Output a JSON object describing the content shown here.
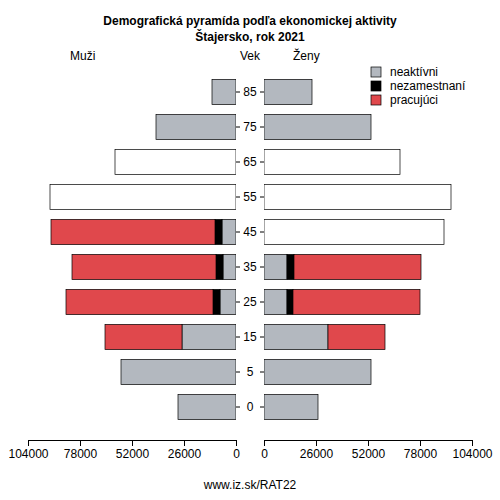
{
  "chart_data": {
    "type": "bar",
    "title": "Demografická pyramída podľa ekonomickej aktivity",
    "subtitle": "Štajersko, rok 2021",
    "ylabel": "Vek",
    "panel_labels": [
      "Muži",
      "Ženy"
    ],
    "source": "www.iz.sk/RAT22",
    "orientation": "horizontal",
    "stacked": true,
    "legend": "top-right",
    "categories": [
      0,
      5,
      15,
      25,
      35,
      45,
      55,
      65,
      75,
      85
    ],
    "xlim": [
      0,
      104000
    ],
    "xticks": [
      0,
      26000,
      52000,
      78000,
      104000
    ],
    "series": [
      {
        "name": "neaktívni",
        "color": "#b3b8bf",
        "men": [
          29000,
          57500,
          27000,
          8000,
          6500,
          7000,
          null,
          null,
          40000,
          12000
        ],
        "women": [
          27000,
          53500,
          32000,
          11500,
          11500,
          null,
          null,
          null,
          53500,
          24000
        ]
      },
      {
        "name": "nezamestnaní",
        "color": "#000000",
        "men": [
          null,
          null,
          0,
          3500,
          3500,
          3500,
          null,
          null,
          null,
          null
        ],
        "women": [
          null,
          null,
          0,
          3000,
          3500,
          null,
          null,
          null,
          null,
          null
        ]
      },
      {
        "name": "pracujúci",
        "color": "#e0484c",
        "men": [
          null,
          null,
          38500,
          73500,
          72000,
          82000,
          null,
          null,
          null,
          null
        ],
        "women": [
          null,
          null,
          28500,
          63500,
          63500,
          null,
          null,
          null,
          null,
          null
        ]
      },
      {
        "color": "#ffffff",
        "men": [
          null,
          null,
          null,
          null,
          null,
          null,
          93000,
          60500,
          null,
          null
        ],
        "women": [
          null,
          null,
          null,
          null,
          null,
          90000,
          93500,
          68000,
          null,
          null
        ]
      }
    ]
  }
}
